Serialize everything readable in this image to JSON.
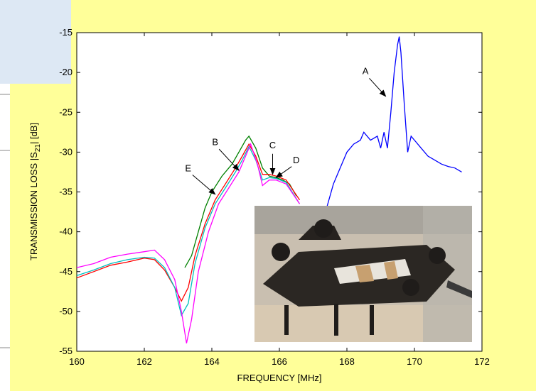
{
  "chart_data": {
    "type": "line",
    "title": "",
    "xlabel": "FREQUENCY [MHz]",
    "ylabel": "TRANSMISSION LOSS |S21| [dB]",
    "ylabel_parts": {
      "pre": "TRANSMISSION LOSS |S",
      "sub": "21",
      "post": "| [dB]"
    },
    "xlim": [
      160,
      172
    ],
    "ylim": [
      -55,
      -15
    ],
    "xticks": [
      160,
      162,
      164,
      166,
      168,
      170,
      172
    ],
    "yticks": [
      -15,
      -20,
      -25,
      -30,
      -35,
      -40,
      -45,
      -50,
      -55
    ],
    "grid": false,
    "series": [
      {
        "color": "#0000ff",
        "x": [
          167.4,
          167.6,
          167.8,
          168.0,
          168.2,
          168.4,
          168.5,
          168.7,
          168.9,
          169.0,
          169.1,
          169.2,
          169.3,
          169.4,
          169.5,
          169.55,
          169.6,
          169.7,
          169.8,
          169.9,
          170.0,
          170.2,
          170.4,
          170.6,
          170.8,
          171.0,
          171.2,
          171.4
        ],
        "y": [
          -37,
          -34,
          -32,
          -30,
          -29,
          -28.5,
          -27.5,
          -28.5,
          -28,
          -29.5,
          -27.5,
          -29.5,
          -25,
          -20,
          -16.5,
          -15.5,
          -17.5,
          -24,
          -30,
          -28,
          -28.5,
          -29.5,
          -30.5,
          -31,
          -31.5,
          -31.8,
          -32,
          -32.5
        ]
      },
      {
        "color": "#008000",
        "x": [
          163.2,
          163.4,
          163.6,
          163.8,
          164.0,
          164.3,
          164.6,
          164.8,
          165.0,
          165.1,
          165.3,
          165.5,
          165.7,
          165.9,
          166.1,
          166.3,
          166.5
        ],
        "y": [
          -44.5,
          -43,
          -40,
          -37,
          -35,
          -33,
          -31.5,
          -30,
          -28.5,
          -28,
          -29.5,
          -32,
          -33,
          -33.2,
          -33.5,
          -34,
          -35.5
        ]
      },
      {
        "color": "#ff0000",
        "x": [
          160,
          160.5,
          161.0,
          161.5,
          162.0,
          162.3,
          162.6,
          162.9,
          163.1,
          163.3,
          163.5,
          163.8,
          164.1,
          164.4,
          164.7,
          164.9,
          165.1,
          165.3,
          165.5,
          165.7,
          165.9,
          166.2,
          166.6
        ],
        "y": [
          -45.8,
          -45,
          -44.2,
          -43.8,
          -43.3,
          -43.5,
          -44.8,
          -47,
          -48.7,
          -47,
          -43,
          -39,
          -36,
          -34,
          -32,
          -30.5,
          -29,
          -30.5,
          -32.8,
          -32.8,
          -33,
          -33.5,
          -36
        ]
      },
      {
        "color": "#00c0c0",
        "x": [
          160,
          160.5,
          161.0,
          161.5,
          162.0,
          162.3,
          162.6,
          162.9,
          163.1,
          163.3,
          163.5,
          163.8,
          164.1,
          164.4,
          164.7,
          164.9,
          165.1,
          165.3,
          165.5,
          165.7,
          165.9,
          166.2,
          166.6
        ],
        "y": [
          -45.5,
          -44.8,
          -44,
          -43.5,
          -43.2,
          -43.3,
          -44.5,
          -47,
          -50.5,
          -49,
          -44,
          -39.5,
          -36.5,
          -34.5,
          -32.5,
          -31,
          -29.3,
          -31,
          -33.5,
          -33.2,
          -33.3,
          -33.8,
          -36.5
        ]
      },
      {
        "color": "#ff00ff",
        "x": [
          160,
          160.5,
          161.0,
          161.5,
          162.0,
          162.3,
          162.6,
          162.9,
          163.1,
          163.25,
          163.4,
          163.6,
          163.9,
          164.2,
          164.5,
          164.8,
          165.0,
          165.15,
          165.35,
          165.5,
          165.7,
          165.9,
          166.2,
          166.6
        ],
        "y": [
          -44.5,
          -44,
          -43.2,
          -42.8,
          -42.5,
          -42.3,
          -43.5,
          -46,
          -50,
          -54,
          -51,
          -45,
          -40,
          -36.5,
          -34.5,
          -32.5,
          -30.5,
          -29,
          -31.5,
          -34.2,
          -33.5,
          -33.5,
          -34,
          -36.5
        ]
      }
    ],
    "annotations": [
      {
        "label": "A",
        "x": 169.15,
        "y": -23,
        "tx": 168.55,
        "ty": -20.2
      },
      {
        "label": "B",
        "x": 164.8,
        "y": -32.3,
        "tx": 164.1,
        "ty": -29.1
      },
      {
        "label": "C",
        "x": 165.8,
        "y": -32.8,
        "tx": 165.8,
        "ty": -29.5
      },
      {
        "label": "D",
        "x": 165.9,
        "y": -33.2,
        "tx": 166.5,
        "ty": -31.4
      },
      {
        "label": "E",
        "x": 164.1,
        "y": -35.3,
        "tx": 163.3,
        "ty": -32.4
      }
    ]
  },
  "inset_photo": {
    "label": "photo-of-resonator-test-fixture"
  }
}
